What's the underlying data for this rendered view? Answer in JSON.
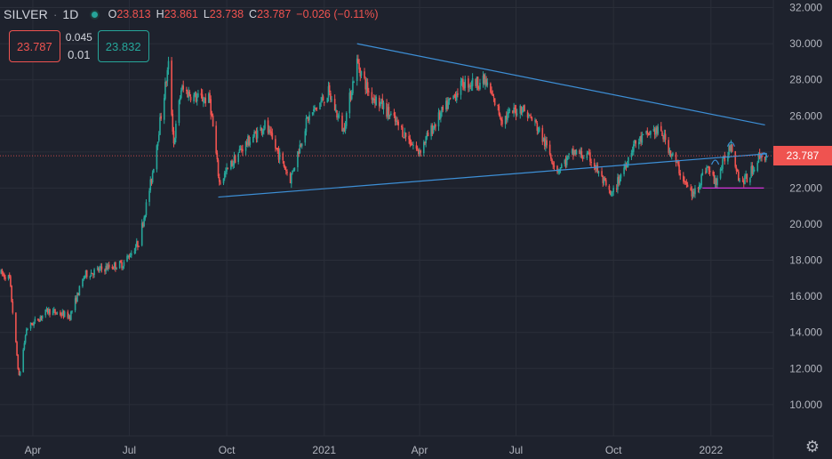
{
  "header": {
    "symbol": "SILVER",
    "separator": "·",
    "interval": "1D",
    "open_label": "O",
    "open": "23.813",
    "high_label": "H",
    "high": "23.861",
    "low_label": "L",
    "low": "23.738",
    "close_label": "C",
    "close": "23.787",
    "change": "−0.026 (−0.11%)"
  },
  "trade": {
    "sell_price": "23.787",
    "spread_top": "0.045",
    "spread_bottom": "0.01",
    "buy_price": "23.832"
  },
  "last_price_tag": "23.787",
  "colors": {
    "background": "#1e222d",
    "up": "#26a69a",
    "down": "#ef5350",
    "trendline": "#3d8fd6",
    "support": "#d133d6",
    "grid": "#2a2e39"
  },
  "chart_data": {
    "type": "candlestick",
    "y_ticks": [
      "32.000",
      "30.000",
      "28.000",
      "26.000",
      "24.000",
      "22.000",
      "20.000",
      "18.000",
      "16.000",
      "14.000",
      "12.000",
      "10.000"
    ],
    "y_tick_values": [
      32,
      30,
      28,
      26,
      24,
      22,
      20,
      18,
      16,
      14,
      12,
      10
    ],
    "ylim": [
      9.4,
      32.2
    ],
    "x_ticks": [
      "Apr",
      "Jul",
      "Oct",
      "2021",
      "Apr",
      "Jul",
      "Oct",
      "2022"
    ],
    "x_tick_dates": [
      "2020-04-01",
      "2020-07-01",
      "2020-10-01",
      "2021-01-01",
      "2021-04-01",
      "2021-07-01",
      "2021-10-01",
      "2022-01-01"
    ],
    "xlim": [
      "2020-03-01",
      "2022-02-23"
    ],
    "last_price": 23.787,
    "anchors": [
      [
        "2020-03-01",
        17.3
      ],
      [
        "2020-03-10",
        17.0
      ],
      [
        "2020-03-19",
        11.5
      ],
      [
        "2020-03-26",
        14.2
      ],
      [
        "2020-04-15",
        15.2
      ],
      [
        "2020-05-06",
        14.9
      ],
      [
        "2020-05-20",
        17.2
      ],
      [
        "2020-06-10",
        17.6
      ],
      [
        "2020-06-25",
        17.8
      ],
      [
        "2020-07-10",
        19.0
      ],
      [
        "2020-07-22",
        22.5
      ],
      [
        "2020-08-07",
        28.8
      ],
      [
        "2020-08-12",
        24.5
      ],
      [
        "2020-08-19",
        27.5
      ],
      [
        "2020-09-02",
        27.0
      ],
      [
        "2020-09-15",
        26.9
      ],
      [
        "2020-09-24",
        22.3
      ],
      [
        "2020-10-15",
        24.2
      ],
      [
        "2020-11-06",
        25.5
      ],
      [
        "2020-11-30",
        22.5
      ],
      [
        "2020-12-16",
        25.8
      ],
      [
        "2021-01-05",
        27.3
      ],
      [
        "2021-01-19",
        25.2
      ],
      [
        "2021-02-01",
        29.0
      ],
      [
        "2021-02-12",
        27.3
      ],
      [
        "2021-02-26",
        26.5
      ],
      [
        "2021-03-31",
        24.0
      ],
      [
        "2021-04-20",
        26.0
      ],
      [
        "2021-05-12",
        27.8
      ],
      [
        "2021-06-02",
        27.9
      ],
      [
        "2021-06-18",
        25.8
      ],
      [
        "2021-07-06",
        26.5
      ],
      [
        "2021-07-20",
        25.5
      ],
      [
        "2021-08-09",
        23.0
      ],
      [
        "2021-08-25",
        24.0
      ],
      [
        "2021-09-10",
        23.6
      ],
      [
        "2021-09-29",
        21.5
      ],
      [
        "2021-10-20",
        24.4
      ],
      [
        "2021-11-08",
        25.2
      ],
      [
        "2021-11-16",
        25.0
      ],
      [
        "2021-12-10",
        22.0
      ],
      [
        "2021-12-15",
        21.6
      ],
      [
        "2021-12-28",
        23.2
      ],
      [
        "2022-01-05",
        22.3
      ],
      [
        "2022-01-20",
        24.5
      ],
      [
        "2022-01-28",
        22.4
      ],
      [
        "2022-02-04",
        22.5
      ],
      [
        "2022-02-16",
        23.8
      ],
      [
        "2022-02-22",
        23.787
      ]
    ],
    "drawings": {
      "upper_trendline": [
        [
          "2021-02-01",
          30.0
        ],
        [
          "2022-02-21",
          25.5
        ]
      ],
      "lower_trendline": [
        [
          "2020-09-23",
          21.5
        ],
        [
          "2022-02-23",
          23.9
        ]
      ],
      "support_line": [
        [
          "2021-12-24",
          22.0
        ],
        [
          "2022-02-20",
          22.0
        ]
      ],
      "arcs": [
        [
          "2022-01-05",
          23.5
        ],
        [
          "2022-01-20",
          24.5
        ],
        [
          "2022-02-20",
          23.9
        ]
      ]
    }
  }
}
